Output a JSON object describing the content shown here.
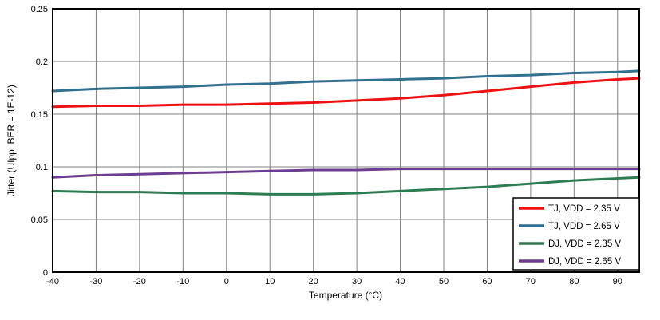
{
  "chart_data": {
    "type": "line",
    "title": "",
    "xlabel": "Temperature (°C)",
    "ylabel": "Jitter (UIpp, BER = 1E-12)",
    "xlim": [
      -40,
      95
    ],
    "ylim": [
      0,
      0.25
    ],
    "xticks": [
      -40,
      -30,
      -20,
      -10,
      0,
      10,
      20,
      30,
      40,
      50,
      60,
      70,
      80,
      90
    ],
    "yticks": [
      0,
      0.05,
      0.1,
      0.15,
      0.2,
      0.25
    ],
    "ytick_labels": [
      "0",
      "0.05",
      "0.1",
      "0.15",
      "0.2",
      "0.25"
    ],
    "grid": true,
    "legend_position": "bottom-right",
    "x": [
      -40,
      -30,
      -20,
      -10,
      0,
      10,
      20,
      30,
      40,
      50,
      60,
      70,
      80,
      90,
      95
    ],
    "series": [
      {
        "name": "TJ, VDD = 2.35 V",
        "color": "#ee1111",
        "values": [
          0.157,
          0.158,
          0.158,
          0.159,
          0.159,
          0.16,
          0.161,
          0.163,
          0.165,
          0.168,
          0.172,
          0.176,
          0.18,
          0.183,
          0.184
        ]
      },
      {
        "name": "TJ, VDD = 2.65 V",
        "color": "#31708e",
        "values": [
          0.172,
          0.174,
          0.175,
          0.176,
          0.178,
          0.179,
          0.181,
          0.182,
          0.183,
          0.184,
          0.186,
          0.187,
          0.189,
          0.19,
          0.191
        ]
      },
      {
        "name": "DJ, VDD = 2.35 V",
        "color": "#2e7d52",
        "values": [
          0.077,
          0.076,
          0.076,
          0.075,
          0.075,
          0.074,
          0.074,
          0.075,
          0.077,
          0.079,
          0.081,
          0.084,
          0.087,
          0.089,
          0.09
        ]
      },
      {
        "name": "DJ, VDD = 2.65 V",
        "color": "#6c3d91",
        "values": [
          0.09,
          0.092,
          0.093,
          0.094,
          0.095,
          0.096,
          0.097,
          0.097,
          0.098,
          0.098,
          0.098,
          0.098,
          0.098,
          0.098,
          0.098
        ]
      }
    ],
    "colors": {
      "grid": "#808080",
      "border": "#000000",
      "background": "#ffffff"
    }
  }
}
